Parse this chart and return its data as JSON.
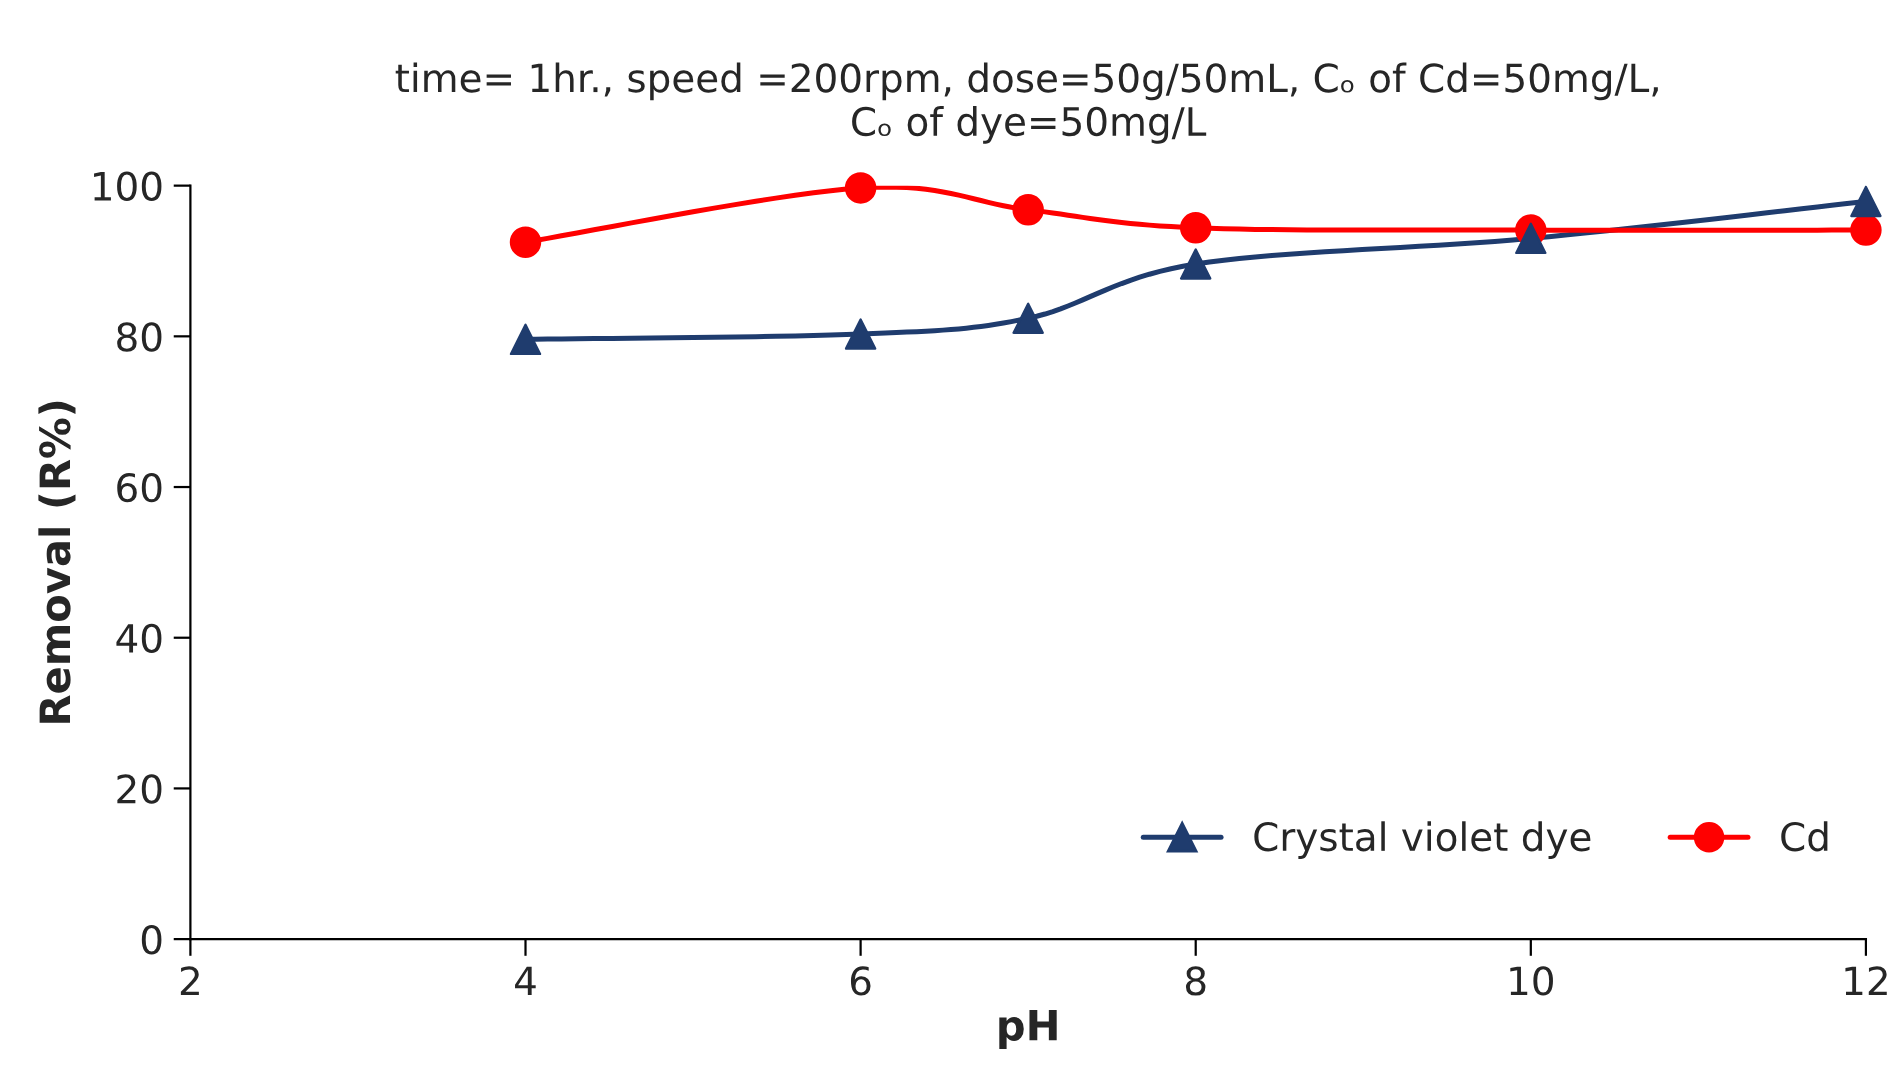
{
  "chart_data": {
    "type": "line",
    "title": "time= 1hr., speed =200rpm, dose=50g/50mL, Cₒ of Cd=50mg/L,\nCₒ of dye=50mg/L",
    "xlabel": "pH",
    "ylabel": "Removal (R%)",
    "x": [
      4,
      6,
      7,
      8,
      10,
      12
    ],
    "series": [
      {
        "name": "Crystal violet dye",
        "color": "#1f3c6e",
        "marker": "triangle",
        "values": [
          79.6,
          80.3,
          82.4,
          89.6,
          93.0,
          97.9
        ]
      },
      {
        "name": "Cd",
        "color": "#ff0000",
        "marker": "circle",
        "values": [
          92.5,
          99.7,
          96.8,
          94.4,
          94.1,
          94.1
        ]
      }
    ],
    "xlim": [
      2,
      12
    ],
    "xticks": [
      2,
      4,
      6,
      8,
      10,
      12
    ],
    "ylim": [
      0,
      100
    ],
    "yticks": [
      0,
      20,
      40,
      60,
      80,
      100
    ],
    "grid": false,
    "legend": "bottom right",
    "line_style": "solid"
  }
}
